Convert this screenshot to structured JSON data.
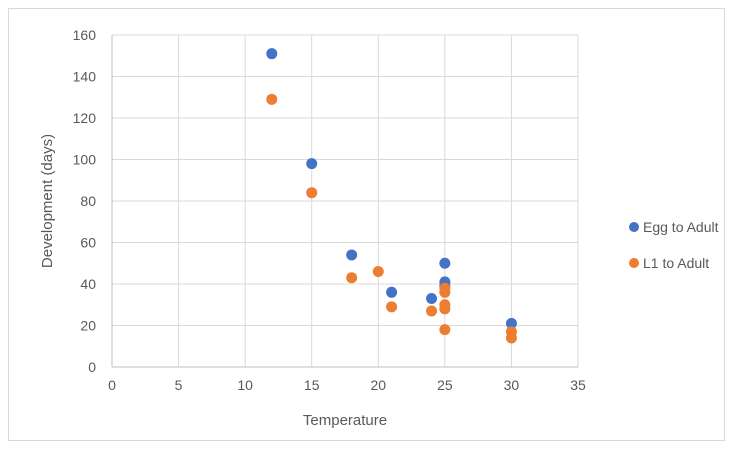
{
  "chart_data": {
    "type": "scatter",
    "title": "",
    "xlabel": "Temperature",
    "ylabel": "Development (days)",
    "xlim": [
      0,
      35
    ],
    "ylim": [
      0,
      160
    ],
    "x_ticks": [
      0,
      5,
      10,
      15,
      20,
      25,
      30,
      35
    ],
    "y_ticks": [
      0,
      20,
      40,
      60,
      80,
      100,
      120,
      140,
      160
    ],
    "grid": true,
    "legend_position": "right",
    "series": [
      {
        "name": "Egg to Adult",
        "color": "#4472c4",
        "points": [
          [
            12,
            151
          ],
          [
            15,
            98
          ],
          [
            18,
            54
          ],
          [
            21,
            36
          ],
          [
            24,
            33
          ],
          [
            25,
            50
          ],
          [
            25,
            41
          ],
          [
            25,
            39
          ],
          [
            30,
            21
          ]
        ]
      },
      {
        "name": "L1 to Adult",
        "color": "#ed7d31",
        "points": [
          [
            12,
            129
          ],
          [
            15,
            84
          ],
          [
            18,
            43
          ],
          [
            20,
            46
          ],
          [
            21,
            29
          ],
          [
            24,
            27
          ],
          [
            25,
            38
          ],
          [
            25,
            36
          ],
          [
            25,
            30
          ],
          [
            25,
            28
          ],
          [
            25,
            18
          ],
          [
            30,
            17
          ],
          [
            30,
            14
          ]
        ]
      }
    ]
  }
}
